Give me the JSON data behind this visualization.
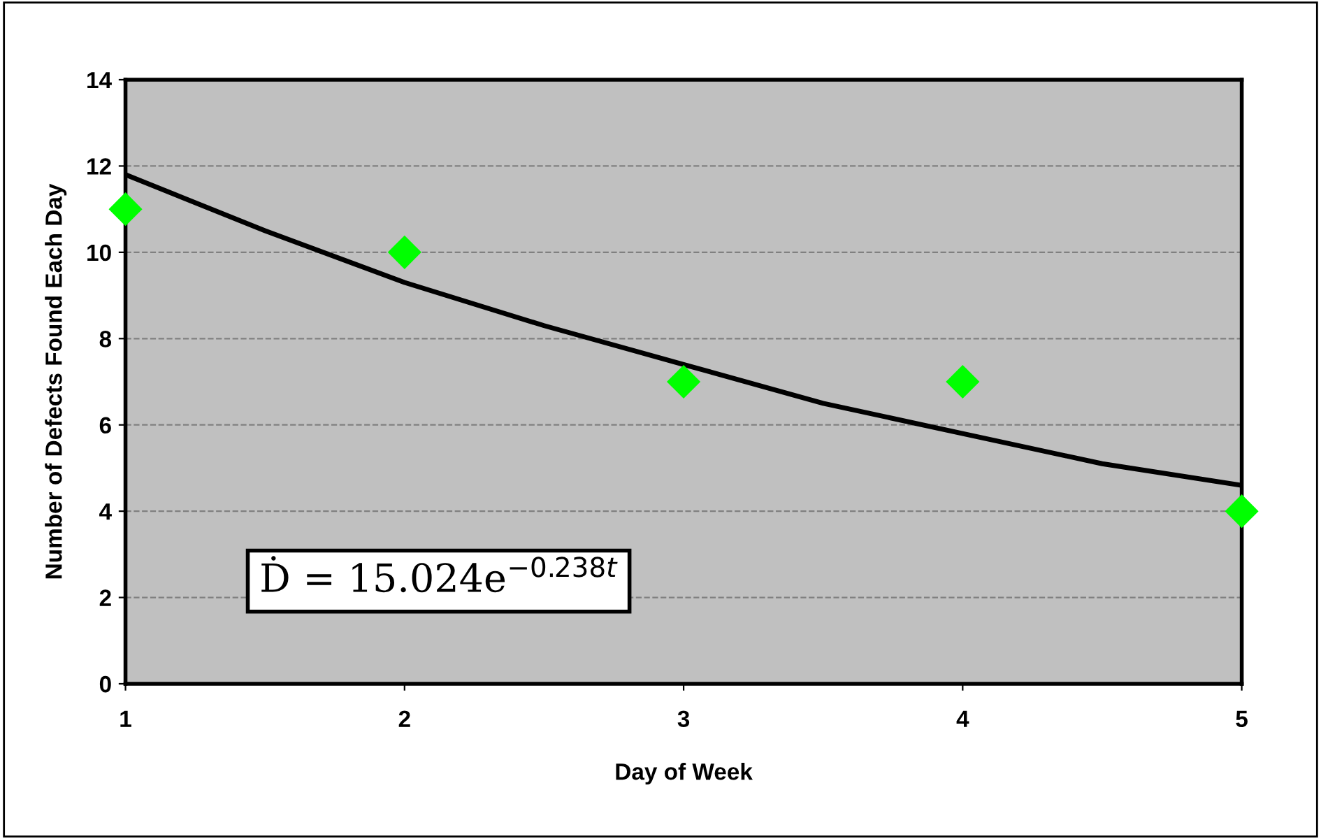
{
  "chart_data": {
    "type": "scatter",
    "xlabel": "Day of Week",
    "ylabel": "Number of Defects Found Each Day",
    "x": [
      1,
      2,
      3,
      4,
      5
    ],
    "series": [
      {
        "color": "#00ff00",
        "marker": "diamond",
        "values": [
          11,
          10,
          7,
          7,
          4
        ]
      },
      {
        "type": "line",
        "color": "#000000",
        "marker": "none",
        "line_style": "solid",
        "x": [
          1,
          1.5,
          2,
          2.5,
          3,
          3.5,
          4,
          4.5,
          5
        ],
        "values": [
          11.8,
          10.5,
          9.3,
          8.3,
          7.4,
          6.5,
          5.8,
          5.1,
          4.6
        ]
      }
    ],
    "annotations": [
      "Ḋ = 15.024e$^{−0.238t}$"
    ],
    "xlim": [
      1,
      5
    ],
    "xticks": [
      1,
      2,
      3,
      4,
      5
    ],
    "ylim": [
      0,
      14
    ],
    "yticks": [
      0,
      2,
      4,
      6,
      8,
      10,
      12,
      14
    ],
    "grid": "y",
    "legend": false
  }
}
